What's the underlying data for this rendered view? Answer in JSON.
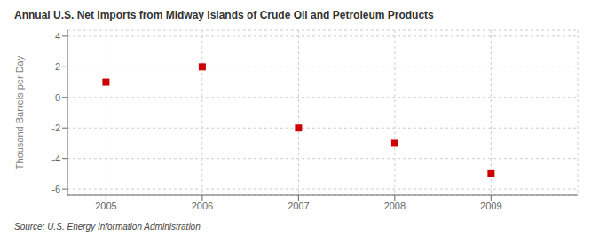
{
  "chart_data": {
    "type": "scatter",
    "title": "Annual U.S. Net Imports from Midway Islands of Crude Oil and Petroleum Products",
    "y_label": "Thousand Barrels per Day",
    "annotation": "Source: U.S. Energy Information Administration",
    "x": [
      2005,
      2006,
      2007,
      2008,
      2009
    ],
    "values": [
      1,
      2,
      -2,
      -3,
      -5
    ],
    "color": "#cc0000",
    "marker": "square",
    "xlim": [
      2004.6,
      2009.9
    ],
    "ylim": [
      -6.4,
      4.4
    ],
    "xticks": [
      2005,
      2006,
      2007,
      2008,
      2009
    ],
    "yticks": [
      -6,
      -4,
      -2,
      0,
      2,
      4
    ],
    "grid": true
  }
}
